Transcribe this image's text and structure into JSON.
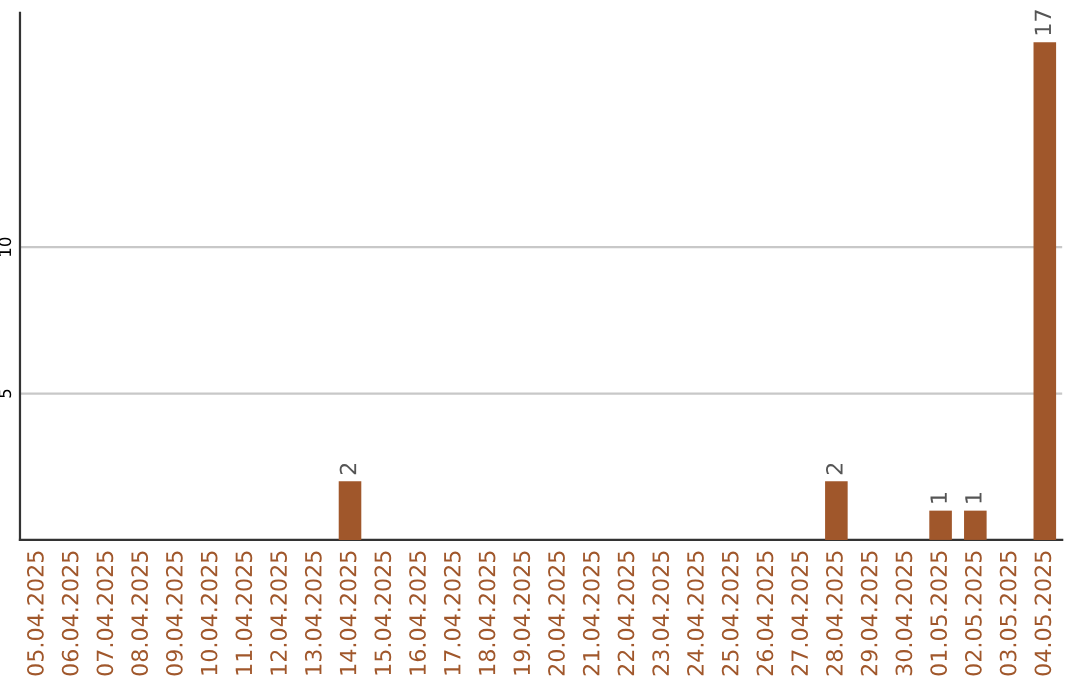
{
  "chart_data": {
    "type": "bar",
    "categories": [
      "05.04.2025",
      "06.04.2025",
      "07.04.2025",
      "08.04.2025",
      "09.04.2025",
      "10.04.2025",
      "11.04.2025",
      "12.04.2025",
      "13.04.2025",
      "14.04.2025",
      "15.04.2025",
      "16.04.2025",
      "17.04.2025",
      "18.04.2025",
      "19.04.2025",
      "20.04.2025",
      "21.04.2025",
      "22.04.2025",
      "23.04.2025",
      "24.04.2025",
      "25.04.2025",
      "26.04.2025",
      "27.04.2025",
      "28.04.2025",
      "29.04.2025",
      "30.04.2025",
      "01.05.2025",
      "02.05.2025",
      "03.05.2025",
      "04.05.2025"
    ],
    "values": [
      0,
      0,
      0,
      0,
      0,
      0,
      0,
      0,
      0,
      2,
      0,
      0,
      0,
      0,
      0,
      0,
      0,
      0,
      0,
      0,
      0,
      0,
      0,
      2,
      0,
      0,
      1,
      1,
      0,
      17
    ],
    "value_labels": [
      null,
      null,
      null,
      null,
      null,
      null,
      null,
      null,
      null,
      "2",
      null,
      null,
      null,
      null,
      null,
      null,
      null,
      null,
      null,
      null,
      null,
      null,
      null,
      "2",
      null,
      null,
      "1",
      "1",
      null,
      "17"
    ],
    "color": "#a0572b",
    "ylim": [
      0,
      18
    ],
    "yticks": [
      5,
      10
    ],
    "grid": "y"
  }
}
